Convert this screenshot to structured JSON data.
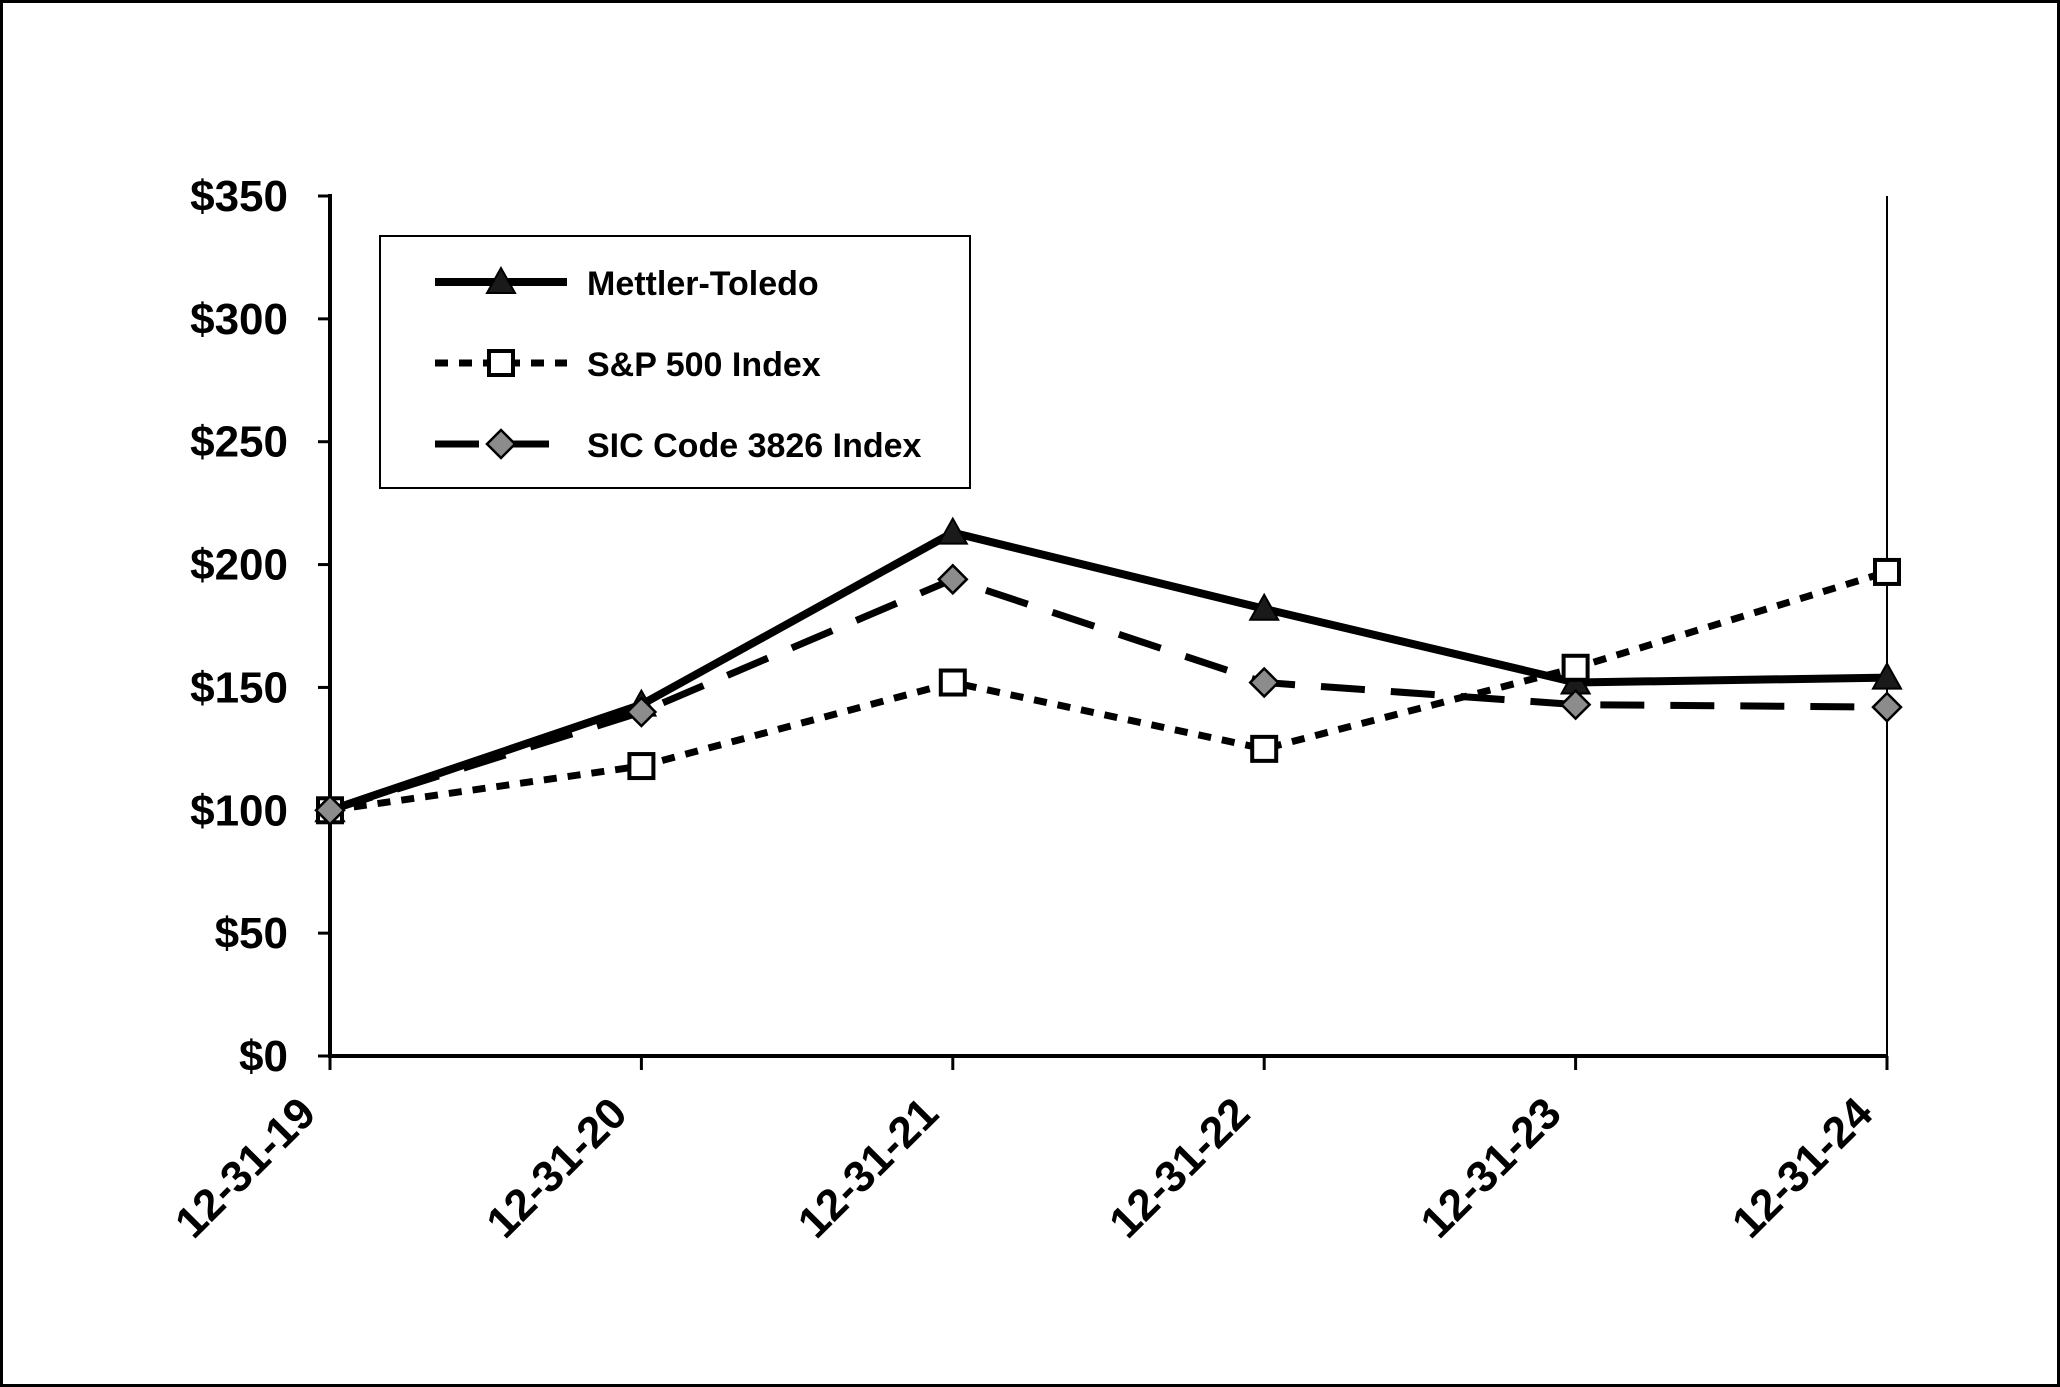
{
  "page": {
    "background": "#ffffff",
    "border_color": "#000000"
  },
  "chart_data": {
    "type": "line",
    "title": "",
    "xlabel": "",
    "ylabel": "",
    "grid": false,
    "legend_position": "top-left",
    "x": [
      "12-31-19",
      "12-31-20",
      "12-31-21",
      "12-31-22",
      "12-31-23",
      "12-31-24"
    ],
    "yticks": [
      0,
      50,
      100,
      150,
      200,
      250,
      300,
      350
    ],
    "ytick_labels": [
      "$0",
      "$50",
      "$100",
      "$150",
      "$200",
      "$250",
      "$300",
      "$350"
    ],
    "ylim": [
      0,
      350
    ],
    "series": [
      {
        "name": "Mettler-Toledo",
        "values": [
          100,
          143,
          213,
          182,
          152,
          154
        ],
        "line_style": "solid",
        "marker": "triangle",
        "line_color": "#000000",
        "marker_fill": "#1a1a1a"
      },
      {
        "name": "S&P 500 Index",
        "values": [
          100,
          118,
          152,
          125,
          158,
          197
        ],
        "line_style": "dotted",
        "marker": "square",
        "line_color": "#000000",
        "marker_fill": "#ffffff"
      },
      {
        "name": "SIC Code 3826 Index",
        "values": [
          100,
          140,
          194,
          152,
          143,
          142
        ],
        "line_style": "dashed",
        "marker": "diamond",
        "line_color": "#000000",
        "marker_fill": "#8c8c8c"
      }
    ]
  }
}
